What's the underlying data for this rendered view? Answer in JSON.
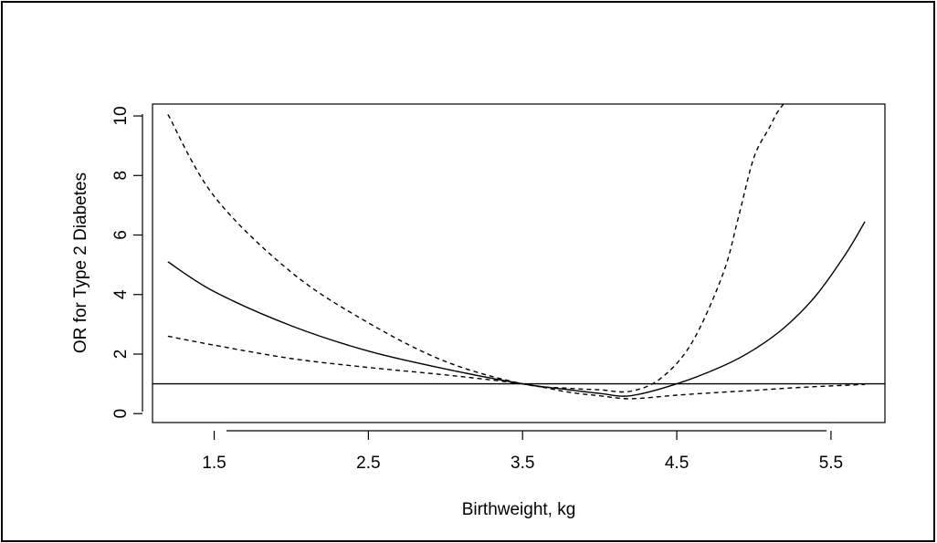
{
  "chart_data": {
    "type": "line",
    "title": "",
    "xlabel": "Birthweight, kg",
    "ylabel": "OR for Type 2 Diabetes",
    "xlim": [
      1.1,
      5.85
    ],
    "ylim": [
      -0.3,
      10.4
    ],
    "x_ticks": [
      {
        "value": 1.5,
        "label": "1.5"
      },
      {
        "value": 2.5,
        "label": "2.5"
      },
      {
        "value": 3.5,
        "label": "3.5"
      },
      {
        "value": 4.5,
        "label": "4.5"
      },
      {
        "value": 5.5,
        "label": "5.5"
      }
    ],
    "y_ticks": [
      {
        "value": 0,
        "label": "0"
      },
      {
        "value": 2,
        "label": "2"
      },
      {
        "value": 4,
        "label": "4"
      },
      {
        "value": 6,
        "label": "6"
      },
      {
        "value": 8,
        "label": "8"
      },
      {
        "value": 10,
        "label": "10"
      }
    ],
    "reference_line": {
      "y": 1
    },
    "grid": false,
    "series": [
      {
        "style": "solid",
        "color": "#000000",
        "x": [
          1.2,
          1.5,
          2.0,
          2.5,
          3.0,
          3.5,
          3.8,
          4.0,
          4.2,
          4.5,
          4.8,
          5.0,
          5.2,
          5.4,
          5.6,
          5.72
        ],
        "y": [
          5.1,
          4.1,
          2.95,
          2.1,
          1.5,
          1.0,
          0.8,
          0.68,
          0.6,
          1.0,
          1.6,
          2.15,
          2.9,
          3.95,
          5.4,
          6.45
        ]
      },
      {
        "style": "dashed",
        "color": "#000000",
        "x": [
          1.2,
          1.5,
          2.0,
          2.5,
          3.0,
          3.5,
          3.8,
          4.0,
          4.2,
          4.4,
          4.6,
          4.8,
          4.9,
          5.0,
          5.1,
          5.15,
          5.2
        ],
        "y": [
          10.05,
          7.3,
          4.75,
          3.05,
          1.75,
          1.0,
          0.85,
          0.8,
          0.75,
          1.2,
          2.4,
          4.7,
          6.6,
          8.6,
          9.6,
          10.1,
          10.45
        ]
      },
      {
        "style": "dashed",
        "color": "#000000",
        "x": [
          1.2,
          1.5,
          2.0,
          2.5,
          3.0,
          3.5,
          3.8,
          4.0,
          4.2,
          4.5,
          4.8,
          5.0,
          5.3,
          5.72
        ],
        "y": [
          2.6,
          2.3,
          1.85,
          1.55,
          1.3,
          1.0,
          0.72,
          0.6,
          0.5,
          0.62,
          0.72,
          0.78,
          0.88,
          0.98
        ]
      }
    ]
  }
}
